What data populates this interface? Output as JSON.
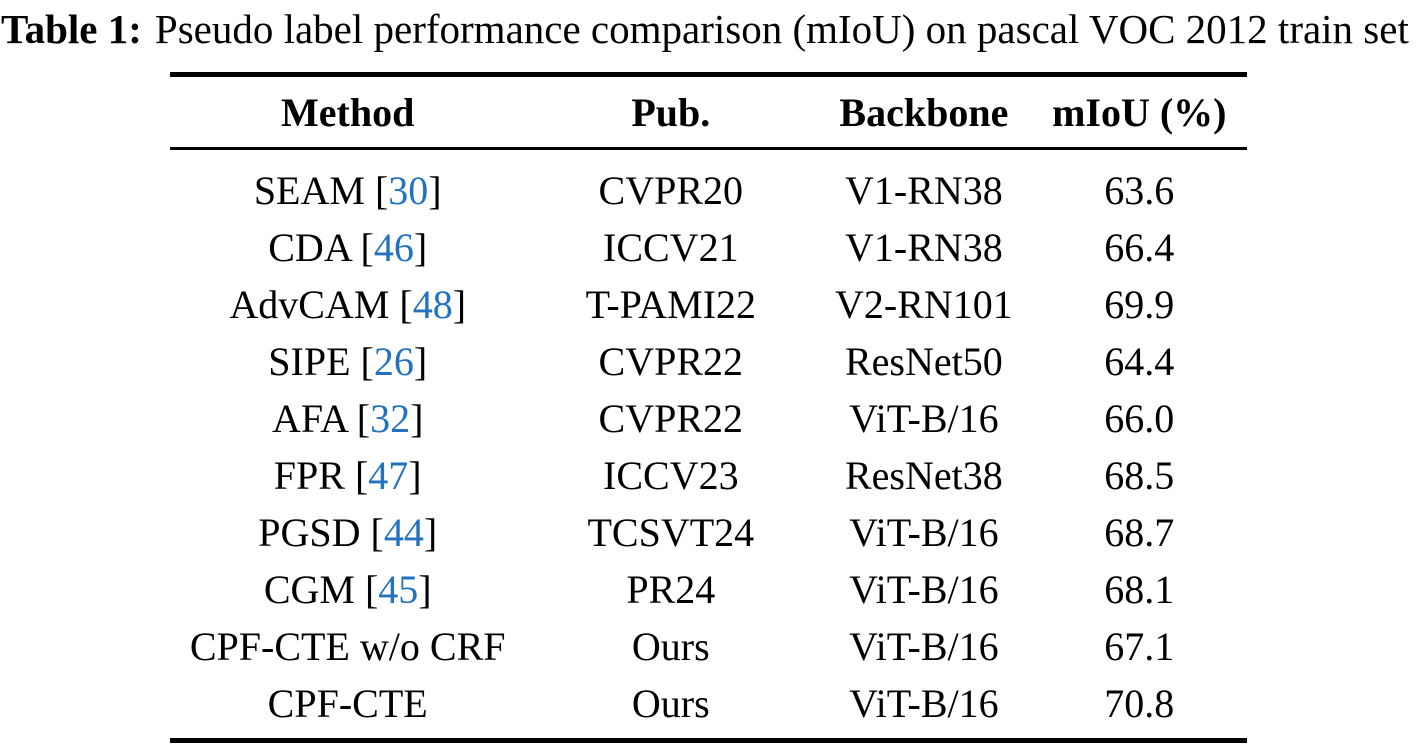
{
  "caption": {
    "label": "Table 1:",
    "text": "Pseudo label performance comparison (mIoU) on pascal VOC 2012 train set"
  },
  "colors": {
    "citation_blue": "#2272c0",
    "text": "#000000",
    "background": "#ffffff"
  },
  "table": {
    "headers": [
      "Method",
      "Pub.",
      "Backbone",
      "mIoU (%)"
    ],
    "rows": [
      {
        "method_pre": "SEAM [",
        "cite": "30",
        "method_post": "]",
        "pub": "CVPR20",
        "backbone": "V1-RN38",
        "miou": "63.6"
      },
      {
        "method_pre": "CDA [",
        "cite": "46",
        "method_post": "]",
        "pub": "ICCV21",
        "backbone": "V1-RN38",
        "miou": "66.4"
      },
      {
        "method_pre": "AdvCAM [",
        "cite": "48",
        "method_post": "]",
        "pub": "T-PAMI22",
        "backbone": "V2-RN101",
        "miou": "69.9"
      },
      {
        "method_pre": "SIPE [",
        "cite": "26",
        "method_post": "]",
        "pub": "CVPR22",
        "backbone": "ResNet50",
        "miou": "64.4"
      },
      {
        "method_pre": "AFA [",
        "cite": "32",
        "method_post": "]",
        "pub": "CVPR22",
        "backbone": "ViT-B/16",
        "miou": "66.0"
      },
      {
        "method_pre": "FPR [",
        "cite": "47",
        "method_post": "]",
        "pub": "ICCV23",
        "backbone": "ResNet38",
        "miou": "68.5"
      },
      {
        "method_pre": "PGSD [",
        "cite": "44",
        "method_post": "]",
        "pub": "TCSVT24",
        "backbone": "ViT-B/16",
        "miou": "68.7"
      },
      {
        "method_pre": "CGM [",
        "cite": "45",
        "method_post": "]",
        "pub": "PR24",
        "backbone": "ViT-B/16",
        "miou": "68.1"
      },
      {
        "method_pre": "CPF-CTE w/o CRF",
        "cite": "",
        "method_post": "",
        "pub": "Ours",
        "backbone": "ViT-B/16",
        "miou": "67.1"
      },
      {
        "method_pre": "CPF-CTE",
        "cite": "",
        "method_post": "",
        "pub": "Ours",
        "backbone": "ViT-B/16",
        "miou": "70.8"
      }
    ]
  }
}
